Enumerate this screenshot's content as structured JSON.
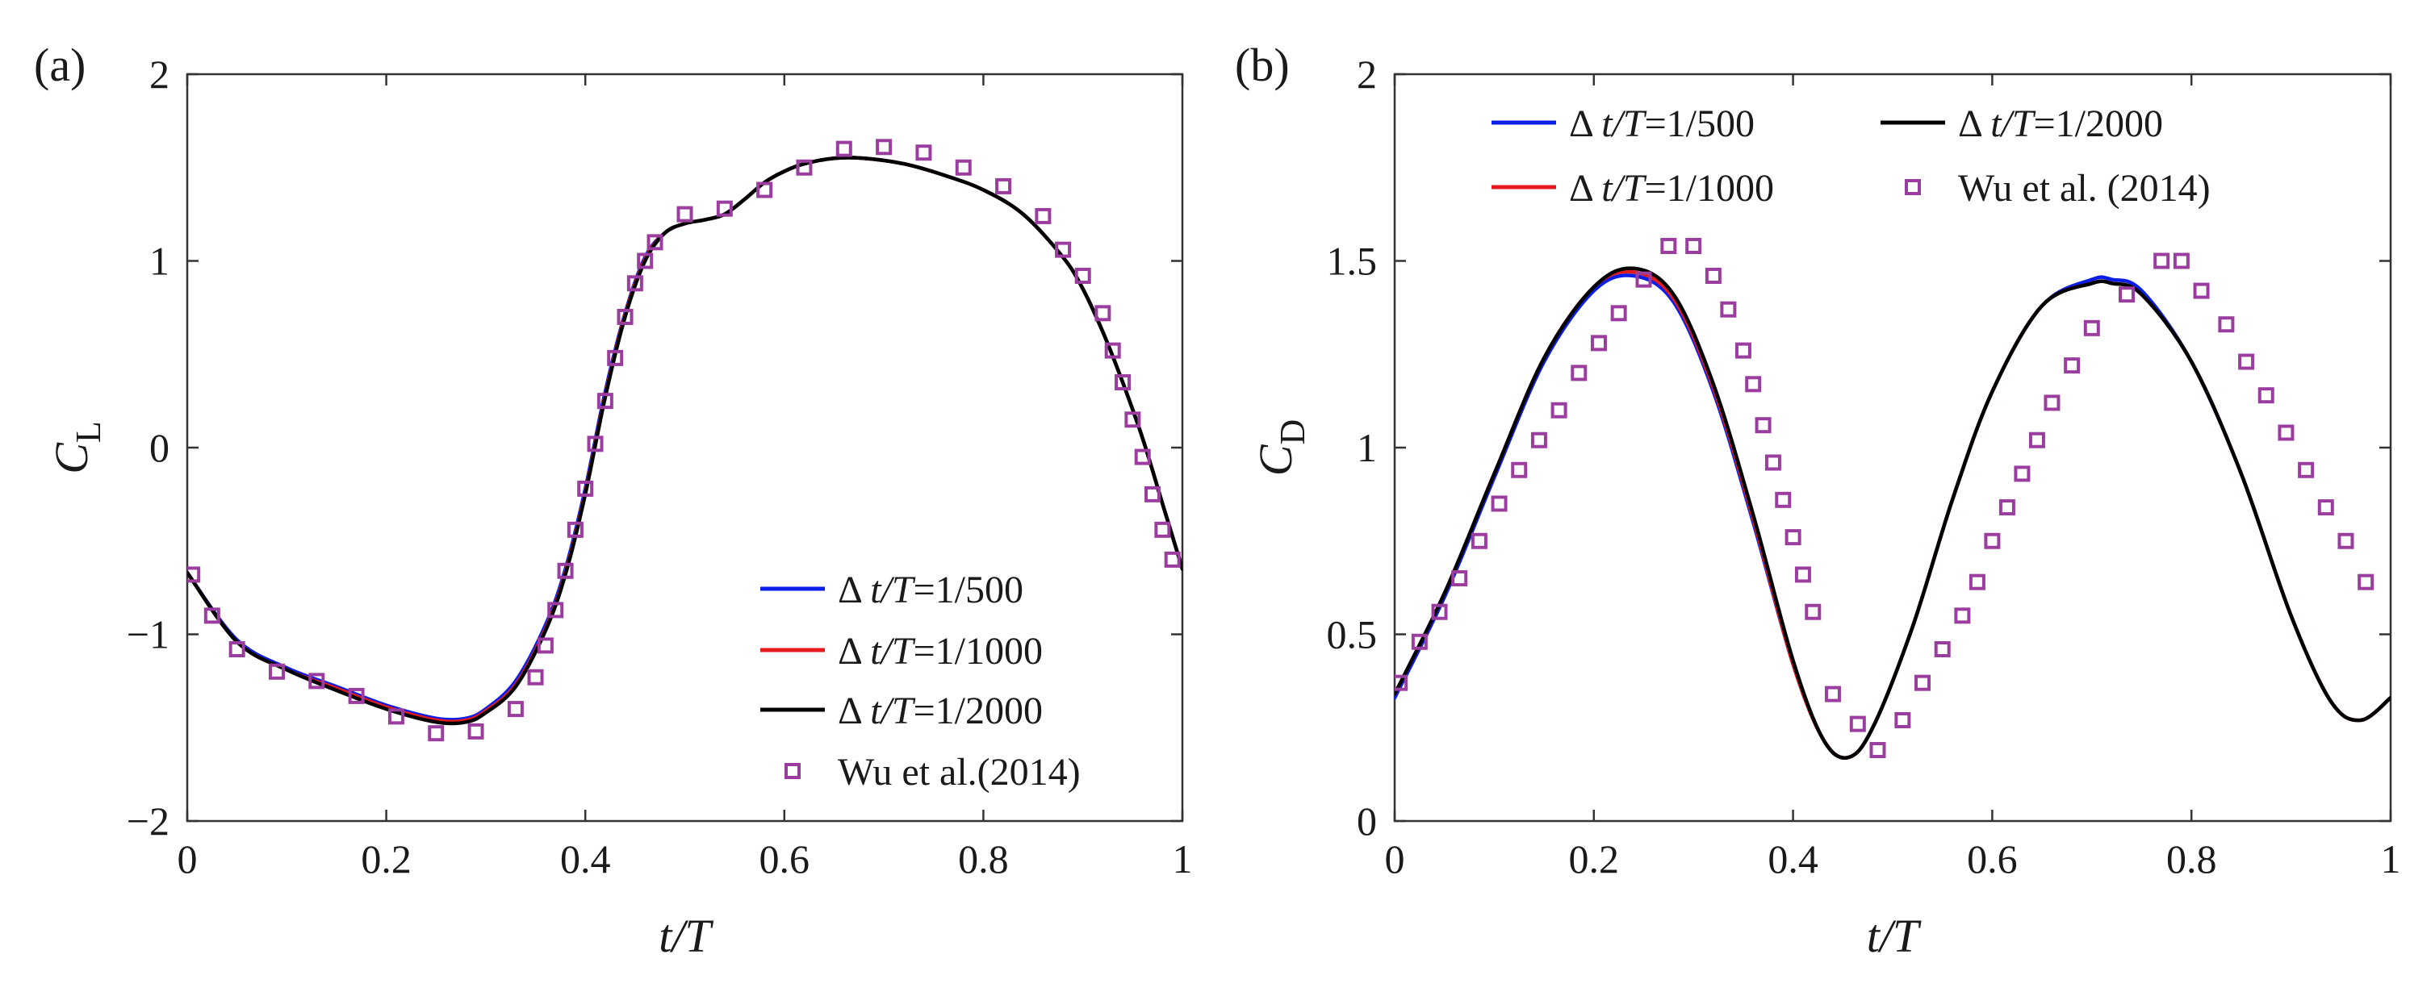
{
  "colors": {
    "dt500": "#0a1ee8",
    "dt1000": "#e41a1c",
    "dt2000": "#000000",
    "ref": "#9b3d9e"
  },
  "chart_data": [
    {
      "type": "line",
      "panel_label": "(a)",
      "xlabel": "t/T",
      "ylabel_main": "C",
      "ylabel_sub": "L",
      "xlim": [
        0,
        1
      ],
      "ylim": [
        -2,
        2
      ],
      "x_ticks": [
        0,
        0.2,
        0.4,
        0.6,
        0.8,
        1
      ],
      "x_tick_labels": [
        "0",
        "0.2",
        "0.4",
        "0.6",
        "0.8",
        "1"
      ],
      "y_ticks": [
        -2,
        -1,
        0,
        1,
        2
      ],
      "y_tick_labels": [
        "−2",
        "−1",
        "0",
        "1",
        "2"
      ],
      "legend_position": "lower-right",
      "series": [
        {
          "name": "dt500",
          "kind": "line",
          "legend_prefix": "Δ ",
          "legend_var": "t/T",
          "legend_suffix": "=1/500",
          "x": [
            0,
            0.05,
            0.1,
            0.15,
            0.2,
            0.25,
            0.28,
            0.3,
            0.33,
            0.36,
            0.38,
            0.4,
            0.42,
            0.44,
            0.46,
            0.48,
            0.5,
            0.52,
            0.54,
            0.56,
            0.58,
            0.6,
            0.62,
            0.65,
            0.68,
            0.72,
            0.76,
            0.8,
            0.84,
            0.88,
            0.9,
            0.92,
            0.94,
            0.96,
            0.98,
            1.0
          ],
          "y": [
            -0.67,
            -1.03,
            -1.18,
            -1.28,
            -1.38,
            -1.45,
            -1.45,
            -1.4,
            -1.25,
            -0.95,
            -0.65,
            -0.22,
            0.3,
            0.72,
            1.02,
            1.15,
            1.2,
            1.22,
            1.25,
            1.33,
            1.42,
            1.48,
            1.52,
            1.55,
            1.55,
            1.52,
            1.46,
            1.38,
            1.25,
            1.02,
            0.85,
            0.62,
            0.35,
            0.05,
            -0.3,
            -0.65
          ]
        },
        {
          "name": "dt1000",
          "kind": "line",
          "legend_prefix": "Δ ",
          "legend_var": "t/T",
          "legend_suffix": "=1/1000",
          "x": [
            0,
            0.05,
            0.1,
            0.15,
            0.2,
            0.25,
            0.28,
            0.3,
            0.33,
            0.36,
            0.38,
            0.4,
            0.42,
            0.44,
            0.46,
            0.48,
            0.5,
            0.52,
            0.54,
            0.56,
            0.58,
            0.6,
            0.62,
            0.65,
            0.68,
            0.72,
            0.76,
            0.8,
            0.84,
            0.88,
            0.9,
            0.92,
            0.94,
            0.96,
            0.98,
            1.0
          ],
          "y": [
            -0.67,
            -1.04,
            -1.19,
            -1.29,
            -1.39,
            -1.46,
            -1.46,
            -1.41,
            -1.27,
            -0.97,
            -0.67,
            -0.24,
            0.28,
            0.71,
            1.01,
            1.15,
            1.2,
            1.22,
            1.25,
            1.33,
            1.42,
            1.48,
            1.52,
            1.55,
            1.55,
            1.52,
            1.46,
            1.38,
            1.25,
            1.02,
            0.85,
            0.62,
            0.35,
            0.05,
            -0.3,
            -0.65
          ]
        },
        {
          "name": "dt2000",
          "kind": "line",
          "legend_prefix": "Δ ",
          "legend_var": "t/T",
          "legend_suffix": "=1/2000",
          "x": [
            0,
            0.05,
            0.1,
            0.15,
            0.2,
            0.25,
            0.28,
            0.3,
            0.33,
            0.36,
            0.38,
            0.4,
            0.42,
            0.44,
            0.46,
            0.48,
            0.5,
            0.52,
            0.54,
            0.56,
            0.58,
            0.6,
            0.62,
            0.65,
            0.68,
            0.72,
            0.76,
            0.8,
            0.84,
            0.88,
            0.9,
            0.92,
            0.94,
            0.96,
            0.98,
            1.0
          ],
          "y": [
            -0.67,
            -1.04,
            -1.19,
            -1.3,
            -1.4,
            -1.47,
            -1.47,
            -1.42,
            -1.28,
            -0.98,
            -0.68,
            -0.25,
            0.27,
            0.7,
            1.0,
            1.15,
            1.2,
            1.22,
            1.25,
            1.33,
            1.42,
            1.48,
            1.52,
            1.55,
            1.55,
            1.52,
            1.46,
            1.38,
            1.25,
            1.02,
            0.85,
            0.62,
            0.35,
            0.05,
            -0.3,
            -0.65
          ]
        },
        {
          "name": "ref",
          "kind": "marker",
          "legend_prefix": "",
          "legend_var": "",
          "legend_suffix": "Wu et al.(2014)",
          "x": [
            0.005,
            0.025,
            0.05,
            0.09,
            0.13,
            0.17,
            0.21,
            0.25,
            0.29,
            0.33,
            0.35,
            0.36,
            0.37,
            0.38,
            0.39,
            0.4,
            0.41,
            0.42,
            0.43,
            0.44,
            0.45,
            0.46,
            0.47,
            0.5,
            0.54,
            0.58,
            0.62,
            0.66,
            0.7,
            0.74,
            0.78,
            0.82,
            0.86,
            0.88,
            0.9,
            0.92,
            0.93,
            0.94,
            0.95,
            0.96,
            0.97,
            0.98,
            0.99
          ],
          "y": [
            -0.68,
            -0.9,
            -1.08,
            -1.2,
            -1.25,
            -1.33,
            -1.44,
            -1.53,
            -1.52,
            -1.4,
            -1.23,
            -1.06,
            -0.87,
            -0.66,
            -0.44,
            -0.22,
            0.02,
            0.25,
            0.48,
            0.7,
            0.88,
            1.0,
            1.1,
            1.25,
            1.28,
            1.38,
            1.5,
            1.6,
            1.61,
            1.58,
            1.5,
            1.4,
            1.24,
            1.06,
            0.92,
            0.72,
            0.52,
            0.35,
            0.15,
            -0.05,
            -0.25,
            -0.44,
            -0.6
          ]
        }
      ]
    },
    {
      "type": "line",
      "panel_label": "(b)",
      "xlabel": "t/T",
      "ylabel_main": "C",
      "ylabel_sub": "D",
      "xlim": [
        0,
        1
      ],
      "ylim": [
        0,
        2
      ],
      "x_ticks": [
        0,
        0.2,
        0.4,
        0.6,
        0.8,
        1
      ],
      "x_tick_labels": [
        "0",
        "0.2",
        "0.4",
        "0.6",
        "0.8",
        "1"
      ],
      "y_ticks": [
        0,
        0.5,
        1,
        1.5,
        2
      ],
      "y_tick_labels": [
        "0",
        "0.5",
        "1",
        "1.5",
        "2"
      ],
      "legend_position": "top (two columns)",
      "series": [
        {
          "name": "dt500",
          "kind": "line",
          "legend_prefix": "Δ ",
          "legend_var": "t/T",
          "legend_suffix": "=1/500",
          "x": [
            0,
            0.05,
            0.1,
            0.15,
            0.2,
            0.24,
            0.28,
            0.32,
            0.36,
            0.4,
            0.43,
            0.455,
            0.48,
            0.52,
            0.56,
            0.6,
            0.65,
            0.7,
            0.72,
            0.75,
            0.8,
            0.85,
            0.9,
            0.94,
            0.97,
            1.0
          ],
          "y": [
            0.33,
            0.6,
            0.92,
            1.23,
            1.42,
            1.46,
            1.39,
            1.15,
            0.8,
            0.42,
            0.22,
            0.17,
            0.25,
            0.52,
            0.86,
            1.15,
            1.38,
            1.45,
            1.45,
            1.42,
            1.23,
            0.93,
            0.55,
            0.32,
            0.27,
            0.33
          ]
        },
        {
          "name": "dt1000",
          "kind": "line",
          "legend_prefix": "Δ ",
          "legend_var": "t/T",
          "legend_suffix": "=1/1000",
          "x": [
            0,
            0.05,
            0.1,
            0.15,
            0.2,
            0.24,
            0.28,
            0.32,
            0.36,
            0.4,
            0.43,
            0.455,
            0.48,
            0.52,
            0.56,
            0.6,
            0.65,
            0.7,
            0.72,
            0.75,
            0.8,
            0.85,
            0.9,
            0.94,
            0.97,
            1.0
          ],
          "y": [
            0.34,
            0.61,
            0.93,
            1.24,
            1.43,
            1.47,
            1.4,
            1.16,
            0.81,
            0.42,
            0.22,
            0.17,
            0.25,
            0.52,
            0.86,
            1.15,
            1.38,
            1.44,
            1.44,
            1.41,
            1.23,
            0.93,
            0.55,
            0.32,
            0.27,
            0.33
          ]
        },
        {
          "name": "dt2000",
          "kind": "line",
          "legend_prefix": "Δ ",
          "legend_var": "t/T",
          "legend_suffix": "=1/2000",
          "x": [
            0,
            0.05,
            0.1,
            0.15,
            0.2,
            0.24,
            0.28,
            0.32,
            0.36,
            0.4,
            0.43,
            0.455,
            0.48,
            0.52,
            0.56,
            0.6,
            0.65,
            0.7,
            0.72,
            0.75,
            0.8,
            0.85,
            0.9,
            0.94,
            0.97,
            1.0
          ],
          "y": [
            0.34,
            0.61,
            0.93,
            1.24,
            1.43,
            1.48,
            1.41,
            1.17,
            0.82,
            0.43,
            0.22,
            0.17,
            0.25,
            0.52,
            0.86,
            1.15,
            1.38,
            1.44,
            1.44,
            1.41,
            1.23,
            0.93,
            0.55,
            0.32,
            0.27,
            0.33
          ]
        },
        {
          "name": "ref",
          "kind": "marker",
          "legend_prefix": "",
          "legend_var": "",
          "legend_suffix": "Wu et al. (2014)",
          "x": [
            0.005,
            0.025,
            0.045,
            0.065,
            0.085,
            0.105,
            0.125,
            0.145,
            0.165,
            0.185,
            0.205,
            0.225,
            0.25,
            0.275,
            0.3,
            0.32,
            0.335,
            0.35,
            0.36,
            0.37,
            0.38,
            0.39,
            0.4,
            0.41,
            0.42,
            0.44,
            0.465,
            0.485,
            0.51,
            0.53,
            0.55,
            0.57,
            0.585,
            0.6,
            0.615,
            0.63,
            0.645,
            0.66,
            0.68,
            0.7,
            0.735,
            0.77,
            0.79,
            0.81,
            0.835,
            0.855,
            0.875,
            0.895,
            0.915,
            0.935,
            0.955,
            0.975
          ],
          "y": [
            0.37,
            0.48,
            0.56,
            0.65,
            0.75,
            0.85,
            0.94,
            1.02,
            1.1,
            1.2,
            1.28,
            1.36,
            1.45,
            1.54,
            1.54,
            1.46,
            1.37,
            1.26,
            1.17,
            1.06,
            0.96,
            0.86,
            0.76,
            0.66,
            0.56,
            0.34,
            0.26,
            0.19,
            0.27,
            0.37,
            0.46,
            0.55,
            0.64,
            0.75,
            0.84,
            0.93,
            1.02,
            1.12,
            1.22,
            1.32,
            1.41,
            1.5,
            1.5,
            1.42,
            1.33,
            1.23,
            1.14,
            1.04,
            0.94,
            0.84,
            0.75,
            0.64
          ]
        }
      ]
    }
  ]
}
